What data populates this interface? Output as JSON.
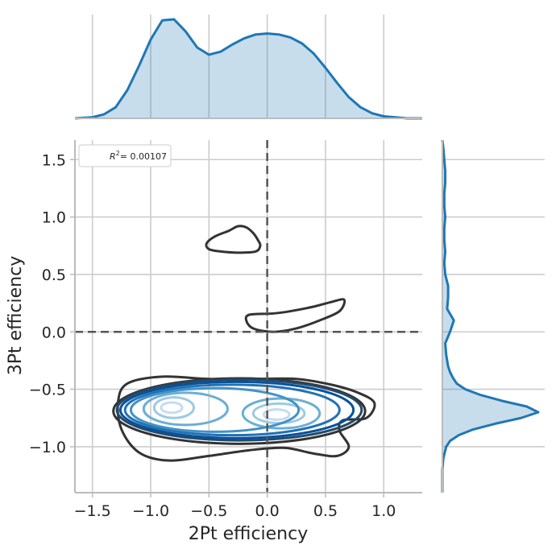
{
  "chart_data": {
    "type": "contour",
    "title": "",
    "xlabel": "2Pt efficiency",
    "ylabel": "3Pt efficiency",
    "xlim": [
      -1.65,
      1.33
    ],
    "ylim": [
      -1.4,
      1.67
    ],
    "xticks": [
      -1.5,
      -1.0,
      -0.5,
      0.0,
      0.5,
      1.0
    ],
    "xtick_labels": [
      "−1.5",
      "−1.0",
      "−0.5",
      "0.0",
      "0.5",
      "1.0"
    ],
    "yticks": [
      -1.0,
      -0.5,
      0.0,
      0.5,
      1.0,
      1.5
    ],
    "ytick_labels": [
      "−1.0",
      "−0.5",
      "0.0",
      "0.5",
      "1.0",
      "1.5"
    ],
    "grid": true,
    "legend": {
      "placement": "upper-left",
      "label_math": "R",
      "label_sup": "2",
      "label_rest": "= 0.00107"
    },
    "reference_lines": [
      {
        "orientation": "vertical",
        "x": 0.0,
        "style": "dashed"
      },
      {
        "orientation": "horizontal",
        "y": 0.0,
        "style": "dashed"
      }
    ],
    "kde_levels": [
      {
        "center_x": -0.82,
        "center_y": -0.66,
        "sx": 0.09,
        "sy": 0.045,
        "color": "#c6dbef"
      },
      {
        "center_x": -0.8,
        "center_y": -0.66,
        "sx": 0.17,
        "sy": 0.09,
        "color": "#9ecae1"
      },
      {
        "center_x": -0.7,
        "center_y": -0.67,
        "sx": 0.36,
        "sy": 0.14,
        "color": "#6baed6"
      },
      {
        "center_x": -0.45,
        "center_y": -0.68,
        "sx": 0.72,
        "sy": 0.19,
        "color": "#4292c6"
      },
      {
        "center_x": -0.3,
        "center_y": -0.68,
        "sx": 0.92,
        "sy": 0.22,
        "color": "#2171b5"
      },
      {
        "center_x": -0.26,
        "center_y": -0.68,
        "sx": 1.0,
        "sy": 0.245,
        "color": "#08519c"
      },
      {
        "center_x": -0.24,
        "center_y": -0.68,
        "sx": 1.05,
        "sy": 0.265,
        "color": "#234b6b"
      },
      {
        "center_x": -0.24,
        "center_y": -0.69,
        "sx": 1.08,
        "sy": 0.285,
        "color": "#333333"
      },
      {
        "center_x": 0.08,
        "center_y": -0.72,
        "sx": 0.11,
        "sy": 0.045,
        "color": "#c6dbef"
      },
      {
        "center_x": 0.1,
        "center_y": -0.71,
        "sx": 0.22,
        "sy": 0.085,
        "color": "#9ecae1"
      },
      {
        "center_x": 0.12,
        "center_y": -0.71,
        "sx": 0.33,
        "sy": 0.13,
        "color": "#6baed6"
      }
    ],
    "outer_contours": [
      {
        "points": [
          [
            -0.52,
            0.77
          ],
          [
            -0.45,
            0.83
          ],
          [
            -0.33,
            0.88
          ],
          [
            -0.25,
            0.92
          ],
          [
            -0.18,
            0.91
          ],
          [
            -0.12,
            0.86
          ],
          [
            -0.08,
            0.8
          ],
          [
            -0.06,
            0.75
          ],
          [
            -0.1,
            0.7
          ],
          [
            -0.25,
            0.69
          ],
          [
            -0.4,
            0.7
          ],
          [
            -0.5,
            0.72
          ]
        ],
        "color": "#333333"
      },
      {
        "points": [
          [
            -0.18,
            0.1
          ],
          [
            -0.15,
            0.15
          ],
          [
            0.05,
            0.16
          ],
          [
            0.2,
            0.18
          ],
          [
            0.4,
            0.22
          ],
          [
            0.55,
            0.26
          ],
          [
            0.66,
            0.28
          ],
          [
            0.62,
            0.18
          ],
          [
            0.45,
            0.1
          ],
          [
            0.25,
            0.03
          ],
          [
            0.05,
            0.0
          ],
          [
            -0.12,
            0.03
          ]
        ],
        "color": "#333333"
      },
      {
        "points": [
          [
            -1.28,
            -0.61
          ],
          [
            -1.2,
            -0.45
          ],
          [
            -0.9,
            -0.39
          ],
          [
            -0.5,
            -0.41
          ],
          [
            -0.1,
            -0.41
          ],
          [
            0.25,
            -0.41
          ],
          [
            0.55,
            -0.46
          ],
          [
            0.78,
            -0.53
          ],
          [
            0.92,
            -0.62
          ],
          [
            0.85,
            -0.75
          ],
          [
            0.65,
            -0.77
          ],
          [
            0.62,
            -0.86
          ],
          [
            0.7,
            -1.0
          ],
          [
            0.6,
            -1.08
          ],
          [
            0.4,
            -1.06
          ],
          [
            0.15,
            -1.01
          ],
          [
            -0.15,
            -1.03
          ],
          [
            -0.5,
            -1.08
          ],
          [
            -0.85,
            -1.12
          ],
          [
            -1.1,
            -1.05
          ],
          [
            -1.25,
            -0.85
          ]
        ],
        "color": "#333333"
      }
    ],
    "marginal_x": {
      "type": "area",
      "color": "#1f77b4",
      "x": [
        -1.65,
        -1.5,
        -1.4,
        -1.3,
        -1.2,
        -1.1,
        -1.0,
        -0.9,
        -0.8,
        -0.7,
        -0.6,
        -0.5,
        -0.4,
        -0.3,
        -0.2,
        -0.1,
        0.0,
        0.1,
        0.2,
        0.3,
        0.4,
        0.5,
        0.6,
        0.7,
        0.8,
        0.9,
        1.0,
        1.1,
        1.2,
        1.33
      ],
      "y": [
        0.0,
        0.01,
        0.04,
        0.11,
        0.28,
        0.52,
        0.78,
        0.97,
        0.98,
        0.86,
        0.7,
        0.63,
        0.66,
        0.73,
        0.79,
        0.83,
        0.84,
        0.83,
        0.8,
        0.74,
        0.64,
        0.5,
        0.35,
        0.21,
        0.11,
        0.05,
        0.02,
        0.01,
        0.0,
        0.0
      ]
    },
    "marginal_y": {
      "type": "area",
      "color": "#1f77b4",
      "y": [
        -1.4,
        -1.2,
        -1.1,
        -1.0,
        -0.95,
        -0.9,
        -0.85,
        -0.8,
        -0.75,
        -0.7,
        -0.65,
        -0.6,
        -0.55,
        -0.5,
        -0.45,
        -0.4,
        -0.35,
        -0.3,
        -0.2,
        -0.1,
        0.0,
        0.1,
        0.2,
        0.3,
        0.4,
        0.5,
        0.6,
        0.7,
        0.8,
        0.9,
        1.0,
        1.1,
        1.2,
        1.3,
        1.4,
        1.5,
        1.6,
        1.67
      ],
      "x": [
        0.0,
        0.0,
        0.01,
        0.04,
        0.08,
        0.17,
        0.32,
        0.55,
        0.82,
        1.0,
        0.88,
        0.62,
        0.4,
        0.24,
        0.15,
        0.11,
        0.08,
        0.06,
        0.04,
        0.03,
        0.08,
        0.12,
        0.05,
        0.06,
        0.06,
        0.03,
        0.02,
        0.03,
        0.02,
        0.02,
        0.03,
        0.02,
        0.02,
        0.03,
        0.03,
        0.02,
        0.01,
        0.0
      ]
    }
  }
}
